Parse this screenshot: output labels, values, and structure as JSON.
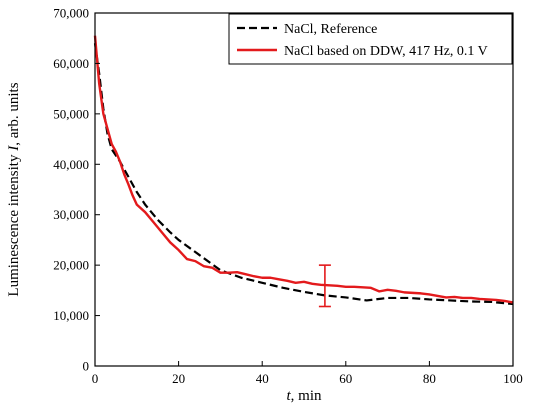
{
  "chart_data": {
    "type": "line",
    "xlabel": "t, min",
    "xlabel_italic": "t",
    "xlabel_rest": ", min",
    "ylabel": "Luminescence intensity I, arb. units",
    "ylabel_before": "Luminescence intensity ",
    "ylabel_italic": "I",
    "ylabel_after": ", arb. units",
    "xlim": [
      0,
      100
    ],
    "ylim": [
      0,
      70000
    ],
    "x_ticks": [
      "0",
      "20",
      "40",
      "60",
      "80",
      "100"
    ],
    "x_tick_values": [
      0,
      20,
      40,
      60,
      80,
      100
    ],
    "y_ticks": [
      "0",
      "10,000",
      "20,000",
      "30,000",
      "40,000",
      "50,000",
      "60,000",
      "70,000"
    ],
    "y_tick_values": [
      0,
      10000,
      20000,
      30000,
      40000,
      50000,
      60000,
      70000
    ],
    "grid": false,
    "legend_position": "top-right",
    "series": [
      {
        "name": "NaCl, Reference",
        "color": "#000000",
        "dash": "dashed",
        "x": [
          0,
          1,
          2,
          3,
          4,
          6,
          8,
          10,
          12,
          15,
          18,
          20,
          25,
          30,
          35,
          40,
          45,
          50,
          55,
          60,
          65,
          70,
          75,
          80,
          85,
          90,
          95,
          100
        ],
        "y": [
          64000,
          58000,
          51000,
          46000,
          43000,
          40500,
          37500,
          34500,
          32000,
          29000,
          26500,
          25000,
          22000,
          19000,
          17500,
          16500,
          15500,
          14700,
          14000,
          13600,
          13000,
          13500,
          13500,
          13200,
          13000,
          12800,
          12700,
          12300
        ]
      },
      {
        "name": "NaCl based on DDW, 417 Hz, 0.1 V",
        "color": "#e31a1c",
        "dash": "solid",
        "x": [
          0,
          1,
          2,
          3,
          4,
          5,
          6,
          7,
          8,
          9,
          10,
          12,
          14,
          16,
          18,
          20,
          22,
          24,
          26,
          28,
          30,
          32,
          34,
          36,
          38,
          40,
          42,
          44,
          46,
          48,
          50,
          52,
          54,
          56,
          58,
          60,
          62,
          64,
          66,
          68,
          70,
          72,
          74,
          76,
          78,
          80,
          82,
          84,
          86,
          88,
          90,
          92,
          94,
          96,
          98,
          100
        ],
        "y": [
          65500,
          56000,
          50000,
          47000,
          44000,
          42500,
          40500,
          38000,
          36000,
          33800,
          32000,
          30500,
          28500,
          26500,
          24500,
          23000,
          21200,
          20800,
          19800,
          19500,
          18500,
          18500,
          18600,
          18200,
          17800,
          17500,
          17500,
          17200,
          16900,
          16500,
          16700,
          16300,
          16100,
          16000,
          15900,
          15700,
          15700,
          15600,
          15500,
          14800,
          15100,
          14900,
          14600,
          14500,
          14400,
          14200,
          13900,
          13600,
          13700,
          13500,
          13500,
          13300,
          13200,
          13100,
          12900,
          12600
        ]
      }
    ],
    "error_bar": {
      "x": 55,
      "y_low": 11800,
      "y_high": 20000,
      "color": "#e31a1c"
    }
  }
}
